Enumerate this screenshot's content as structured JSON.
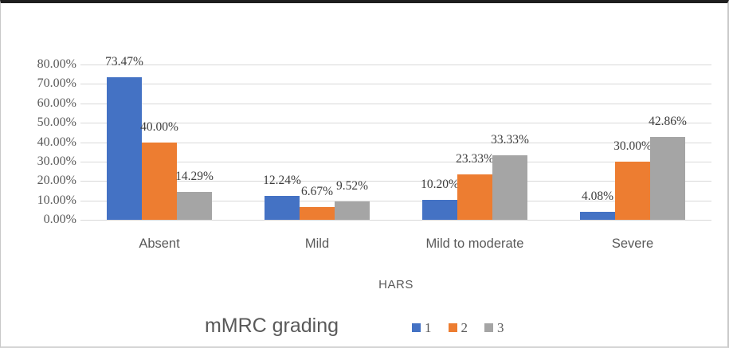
{
  "chart_data": {
    "type": "bar",
    "title": "",
    "xlabel": "HARS",
    "ylabel": "",
    "bottom_title": "mMRC grading",
    "categories": [
      "Absent",
      "Mild",
      "Mild to moderate",
      "Severe"
    ],
    "series": [
      {
        "name": "1",
        "color": "#4472C4",
        "values": [
          73.47,
          12.24,
          10.2,
          4.08
        ],
        "labels": [
          "73.47%",
          "12.24%",
          "10.20%",
          "4.08%"
        ]
      },
      {
        "name": "2",
        "color": "#ED7D31",
        "values": [
          40.0,
          6.67,
          23.33,
          30.0
        ],
        "labels": [
          "40.00%",
          "6.67%",
          "23.33%",
          "30.00%"
        ]
      },
      {
        "name": "3",
        "color": "#A5A5A5",
        "values": [
          14.29,
          9.52,
          33.33,
          42.86
        ],
        "labels": [
          "14.29%",
          "9.52%",
          "33.33%",
          "42.86%"
        ]
      }
    ],
    "y_axis": {
      "min": 0,
      "max": 80,
      "step": 10,
      "tick_labels": [
        "0.00%",
        "10.00%",
        "20.00%",
        "30.00%",
        "40.00%",
        "50.00%",
        "60.00%",
        "70.00%",
        "80.00%"
      ]
    },
    "ylim": [
      0,
      80
    ],
    "grid": true,
    "legend_position": "bottom",
    "grid_color": "#d9d9d9"
  }
}
